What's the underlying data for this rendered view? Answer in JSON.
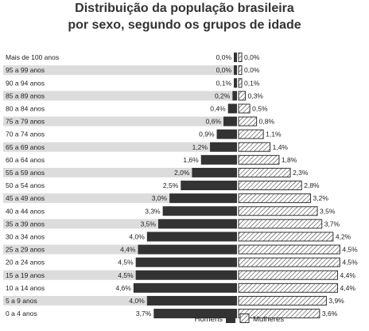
{
  "colors": {
    "men_bar": "#333333",
    "women_hatch_stroke": "#333333",
    "women_fill": "#ffffff",
    "row_stripe": "#dcdcdc",
    "text": "#222222"
  },
  "chart_data": {
    "type": "bar",
    "orientation": "horizontal",
    "title": "Distribuição da população brasileira por sexo, segundo os grupos de idade",
    "title_lines": [
      "Distribuição da população brasileira",
      "por sexo, segundo os grupos de idade"
    ],
    "categories": [
      "Mais de 100 anos",
      "95 a 99 anos",
      "90 a 94 anos",
      "85 a 89 anos",
      "80 a 84 anos",
      "75 a 79 anos",
      "70 a 74 anos",
      "65 a 69 anos",
      "60 a 64 anos",
      "55 a 59 anos",
      "50 a 54 anos",
      "45 a 49 anos",
      "40 a 44 anos",
      "35 a 39 anos",
      "30 a 34 anos",
      "25 a 29 anos",
      "20 a 24 anos",
      "15 a 19 anos",
      "10 a 14 anos",
      "5 a 9 anos",
      "0 a 4 anos"
    ],
    "series": [
      {
        "name": "Homens",
        "values": [
          0.0,
          0.0,
          0.1,
          0.2,
          0.4,
          0.6,
          0.9,
          1.2,
          1.6,
          2.0,
          2.5,
          3.0,
          3.3,
          3.5,
          4.0,
          4.4,
          4.5,
          4.5,
          4.6,
          4.0,
          3.7
        ],
        "labels": [
          "0,0%",
          "0,0%",
          "0,1%",
          "0,2%",
          "0,4%",
          "0,6%",
          "0,9%",
          "1,2%",
          "1,6%",
          "2,0%",
          "2,5%",
          "3,0%",
          "3,3%",
          "3,5%",
          "4,0%",
          "4,4%",
          "4,5%",
          "4,5%",
          "4,6%",
          "4,0%",
          "3,7%"
        ]
      },
      {
        "name": "Mulheres",
        "values": [
          0.0,
          0.0,
          0.1,
          0.3,
          0.5,
          0.8,
          1.1,
          1.4,
          1.8,
          2.3,
          2.8,
          3.2,
          3.5,
          3.7,
          4.2,
          4.5,
          4.5,
          4.4,
          4.4,
          3.9,
          3.6
        ],
        "labels": [
          "0,0%",
          "0,0%",
          "0,1%",
          "0,3%",
          "0,5%",
          "0,8%",
          "1,1%",
          "1,4%",
          "1,8%",
          "2,3%",
          "2,8%",
          "3,2%",
          "3,5%",
          "3,7%",
          "4,2%",
          "4,5%",
          "4,5%",
          "4,4%",
          "4,4%",
          "3,9%",
          "3,6%"
        ]
      }
    ],
    "legend_position": "bottom-right",
    "grid": false
  }
}
